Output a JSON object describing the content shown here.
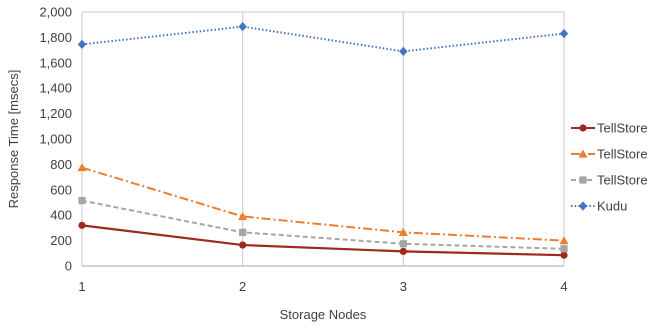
{
  "chart_data": {
    "type": "line",
    "xlabel": "Storage Nodes",
    "ylabel": "Response Time [msecs]",
    "x": [
      1,
      2,
      3,
      4
    ],
    "ylim": [
      0,
      2000
    ],
    "yticks": [
      "0",
      "200",
      "400",
      "600",
      "800",
      "1,000",
      "1,200",
      "1,400",
      "1,600",
      "1,800",
      "2,000"
    ],
    "xticks": [
      "1",
      "2",
      "3",
      "4"
    ],
    "grid": "vertical",
    "legend": "right",
    "series": [
      {
        "name": "TellStore-Col",
        "values": [
          320,
          165,
          115,
          85
        ],
        "color": "#9E2A1F",
        "dash": "solid",
        "marker": "circle"
      },
      {
        "name": "TellStore-Row",
        "values": [
          775,
          390,
          265,
          200
        ],
        "color": "#ED7D31",
        "dash": "dashdot",
        "marker": "triangle"
      },
      {
        "name": "TellStore-Log",
        "values": [
          515,
          265,
          175,
          135
        ],
        "color": "#A5A5A5",
        "dash": "dash",
        "marker": "square"
      },
      {
        "name": "Kudu",
        "values": [
          1745,
          1885,
          1690,
          1830
        ],
        "color": "#4472C4",
        "dash": "dot",
        "marker": "diamond"
      }
    ]
  }
}
